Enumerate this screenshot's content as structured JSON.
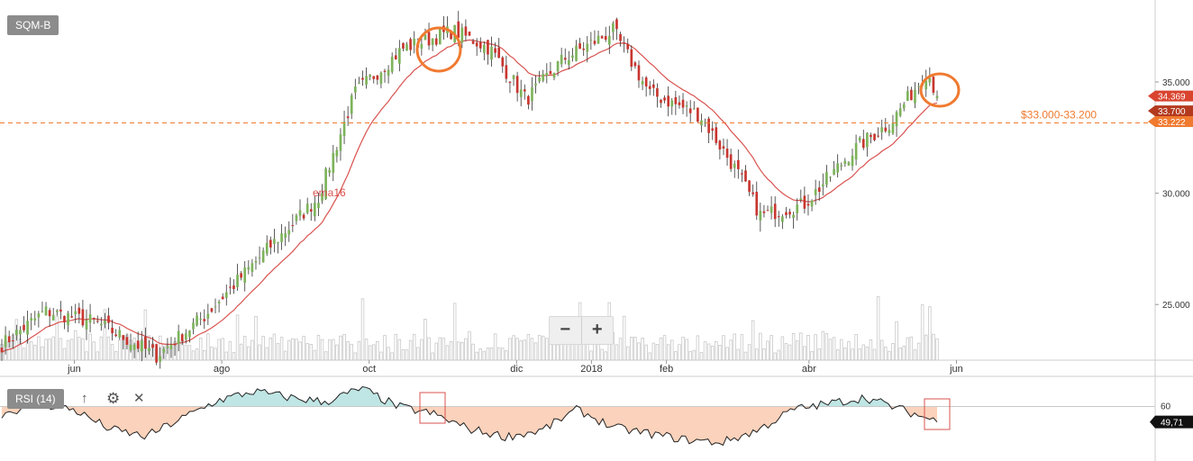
{
  "symbol": "SQM-B",
  "indicator": {
    "label": "RSI (14)",
    "level": "60",
    "last": "49,71"
  },
  "toolbar": {
    "up_icon": "arrow-up-icon",
    "settings_icon": "gear-icon",
    "close_icon": "close-icon"
  },
  "zoom": {
    "out_label": "−",
    "in_label": "+"
  },
  "price_labels": {
    "last": "34.369",
    "open": "33.700",
    "support": "33.222"
  },
  "annotation": {
    "ema_label": "ema16",
    "zone_label": "$33.000-33.200"
  },
  "colors": {
    "up": "#7db35b",
    "down": "#c8362f",
    "ema": "#d9534f",
    "support_line": "#f07a30",
    "circle": "#f07a30",
    "rsi_above": "#bfe6e4",
    "rsi_below": "#fbd2bb",
    "rsi_box": "#d9534f"
  },
  "chart_data": [
    {
      "type": "candlestick",
      "title": "SQM-B",
      "xaxis_ticks": [
        "jun",
        "ago",
        "oct",
        "dic",
        "2018",
        "feb",
        "abr",
        "jun"
      ],
      "yaxis_ticks": [
        "25.000",
        "30.000",
        "35.000"
      ],
      "ylim": [
        22.5,
        38.6
      ],
      "support_zone": [
        33.0,
        33.2
      ],
      "approx_close_path": [
        {
          "date": "2017-05-02",
          "close": 23.2
        },
        {
          "date": "2017-05-20",
          "close": 24.7
        },
        {
          "date": "2017-06-10",
          "close": 24.2
        },
        {
          "date": "2017-07-05",
          "close": 22.7
        },
        {
          "date": "2017-07-25",
          "close": 24.5
        },
        {
          "date": "2017-08-20",
          "close": 27.5
        },
        {
          "date": "2017-09-10",
          "close": 29.8
        },
        {
          "date": "2017-09-25",
          "close": 34.5
        },
        {
          "date": "2017-10-15",
          "close": 36.5
        },
        {
          "date": "2017-11-05",
          "close": 37.3
        },
        {
          "date": "2017-11-20",
          "close": 36.5
        },
        {
          "date": "2017-12-05",
          "close": 34.2
        },
        {
          "date": "2017-12-20",
          "close": 36.0
        },
        {
          "date": "2018-01-10",
          "close": 37.3
        },
        {
          "date": "2018-01-25",
          "close": 34.5
        },
        {
          "date": "2018-02-15",
          "close": 33.5
        },
        {
          "date": "2018-03-02",
          "close": 31.0
        },
        {
          "date": "2018-03-12",
          "close": 29.0
        },
        {
          "date": "2018-03-30",
          "close": 29.5
        },
        {
          "date": "2018-04-20",
          "close": 32.0
        },
        {
          "date": "2018-05-05",
          "close": 33.2
        },
        {
          "date": "2018-05-20",
          "close": 35.5
        },
        {
          "date": "2018-05-24",
          "close": 34.369
        }
      ],
      "ema_label": "ema16"
    },
    {
      "type": "line",
      "title": "RSI (14)",
      "reference_level": 60,
      "last_value": 49.71,
      "approx_values": [
        55,
        62,
        58,
        45,
        40,
        52,
        64,
        70,
        66,
        63,
        72,
        60,
        55,
        45,
        40,
        44,
        58,
        46,
        42,
        38,
        36,
        44,
        58,
        62,
        66,
        58,
        50
      ]
    }
  ]
}
